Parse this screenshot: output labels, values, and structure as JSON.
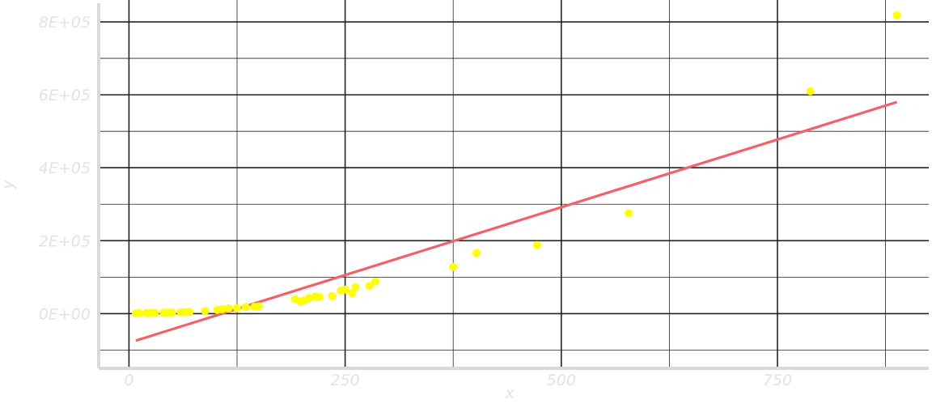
{
  "chart_data": {
    "type": "scatter",
    "xlabel": "x",
    "ylabel": "y",
    "xlim": [
      -35,
      925
    ],
    "ylim": [
      -150000,
      860000
    ],
    "x_ticks": [
      0,
      250,
      500,
      750
    ],
    "x_tick_labels": [
      "0",
      "250",
      "500",
      "750"
    ],
    "y_ticks": [
      0,
      200000,
      400000,
      600000,
      800000
    ],
    "y_tick_labels": [
      "0E+00",
      "2E+05",
      "4E+05",
      "6E+05",
      "8E+05"
    ],
    "grid": true,
    "legend": "none",
    "point_color": "#ffff00",
    "line_color": "#f36166",
    "gridline_color": "#222222",
    "points": [
      {
        "x": 8,
        "y": 800
      },
      {
        "x": 12,
        "y": 1200
      },
      {
        "x": 20,
        "y": 1500
      },
      {
        "x": 25,
        "y": 1800
      },
      {
        "x": 30,
        "y": 2000
      },
      {
        "x": 40,
        "y": 2500
      },
      {
        "x": 45,
        "y": 2800
      },
      {
        "x": 50,
        "y": 3200
      },
      {
        "x": 60,
        "y": 3800
      },
      {
        "x": 65,
        "y": 4200
      },
      {
        "x": 70,
        "y": 4800
      },
      {
        "x": 88,
        "y": 7000
      },
      {
        "x": 102,
        "y": 10000
      },
      {
        "x": 108,
        "y": 12000
      },
      {
        "x": 115,
        "y": 14000
      },
      {
        "x": 125,
        "y": 15500
      },
      {
        "x": 135,
        "y": 18000
      },
      {
        "x": 145,
        "y": 19000
      },
      {
        "x": 150,
        "y": 20000
      },
      {
        "x": 192,
        "y": 40000
      },
      {
        "x": 198,
        "y": 33000
      },
      {
        "x": 202,
        "y": 36000
      },
      {
        "x": 208,
        "y": 42000
      },
      {
        "x": 215,
        "y": 47000
      },
      {
        "x": 220,
        "y": 46000
      },
      {
        "x": 235,
        "y": 48000
      },
      {
        "x": 245,
        "y": 63000
      },
      {
        "x": 250,
        "y": 66000
      },
      {
        "x": 258,
        "y": 56000
      },
      {
        "x": 262,
        "y": 73000
      },
      {
        "x": 278,
        "y": 76000
      },
      {
        "x": 285,
        "y": 88000
      },
      {
        "x": 375,
        "y": 128000
      },
      {
        "x": 402,
        "y": 166000
      },
      {
        "x": 472,
        "y": 188000
      },
      {
        "x": 578,
        "y": 275000
      },
      {
        "x": 788,
        "y": 610000
      },
      {
        "x": 888,
        "y": 818000
      }
    ],
    "trend_line": {
      "x": [
        8,
        888
      ],
      "y": [
        -74000,
        580000
      ]
    }
  }
}
